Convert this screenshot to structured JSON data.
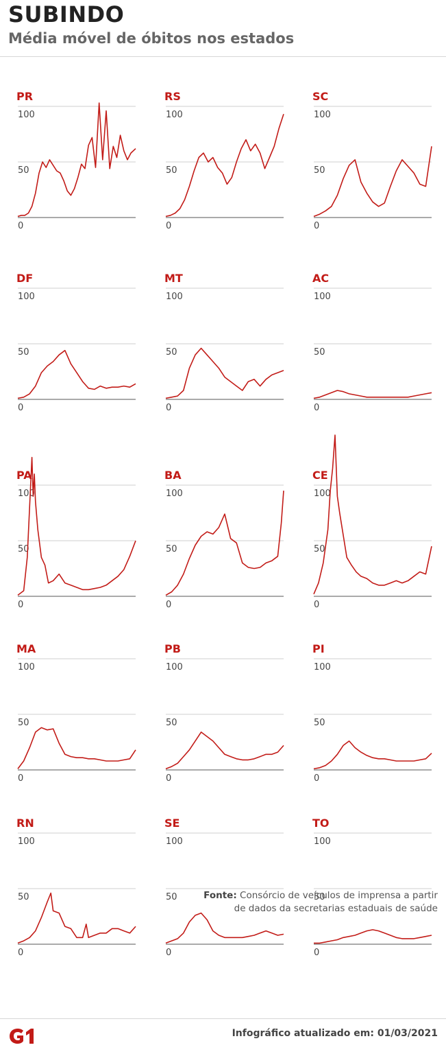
{
  "header": {
    "title": "SUBINDO",
    "subtitle": "Média móvel de óbitos nos estados"
  },
  "source": {
    "label": "Fonte:",
    "text_line1": "Consórcio de veículos de imprensa a partir",
    "text_line2": "de dados da secretarias estaduais de saúde"
  },
  "footer": {
    "updated": "Infográfico atualizado em: 01/03/2021",
    "logo": "G1"
  },
  "colors": {
    "line": "#c21b17",
    "label": "#c21b17"
  },
  "chart_data": [
    {
      "type": "line",
      "state": "PR",
      "yticks": [
        0,
        50,
        100
      ],
      "ylim": [
        0,
        100
      ],
      "x": [
        0,
        3,
        6,
        9,
        12,
        15,
        18,
        21,
        24,
        27,
        30,
        33,
        36,
        39,
        42,
        45,
        48,
        51,
        54,
        57,
        60,
        63,
        66,
        69,
        72,
        75,
        78,
        81,
        84,
        87,
        90,
        93,
        96,
        100
      ],
      "values": [
        1,
        2,
        2,
        4,
        10,
        22,
        40,
        50,
        45,
        52,
        47,
        42,
        40,
        33,
        24,
        20,
        26,
        36,
        48,
        44,
        65,
        72,
        45,
        103,
        52,
        96,
        44,
        64,
        54,
        74,
        60,
        52,
        58,
        62
      ]
    },
    {
      "type": "line",
      "state": "RS",
      "yticks": [
        0,
        50,
        100
      ],
      "ylim": [
        0,
        100
      ],
      "x": [
        0,
        4,
        8,
        12,
        16,
        20,
        24,
        28,
        32,
        36,
        40,
        44,
        48,
        52,
        56,
        60,
        64,
        68,
        72,
        76,
        80,
        84,
        88,
        92,
        96,
        100
      ],
      "values": [
        1,
        2,
        4,
        8,
        16,
        28,
        42,
        54,
        58,
        50,
        54,
        45,
        40,
        30,
        36,
        50,
        62,
        70,
        60,
        66,
        58,
        44,
        54,
        64,
        80,
        93
      ]
    },
    {
      "type": "line",
      "state": "SC",
      "yticks": [
        0,
        50,
        100
      ],
      "ylim": [
        0,
        100
      ],
      "x": [
        0,
        5,
        10,
        15,
        20,
        25,
        30,
        35,
        40,
        45,
        50,
        55,
        60,
        65,
        70,
        75,
        80,
        85,
        90,
        95,
        100
      ],
      "values": [
        1,
        3,
        6,
        10,
        20,
        35,
        47,
        52,
        32,
        22,
        14,
        10,
        13,
        28,
        42,
        52,
        46,
        40,
        30,
        28,
        64
      ]
    },
    {
      "type": "line",
      "state": "DF",
      "yticks": [
        0,
        50,
        100
      ],
      "ylim": [
        0,
        100
      ],
      "x": [
        0,
        5,
        10,
        15,
        20,
        25,
        30,
        35,
        40,
        45,
        50,
        55,
        60,
        65,
        70,
        75,
        80,
        85,
        90,
        95,
        100
      ],
      "values": [
        1,
        2,
        5,
        12,
        24,
        30,
        34,
        40,
        44,
        32,
        24,
        16,
        10,
        9,
        12,
        10,
        11,
        11,
        12,
        11,
        14
      ]
    },
    {
      "type": "line",
      "state": "MT",
      "yticks": [
        0,
        50,
        100
      ],
      "ylim": [
        0,
        100
      ],
      "x": [
        0,
        5,
        10,
        15,
        20,
        25,
        30,
        35,
        40,
        45,
        50,
        55,
        60,
        65,
        70,
        75,
        80,
        85,
        90,
        95,
        100
      ],
      "values": [
        1,
        2,
        3,
        8,
        28,
        40,
        46,
        40,
        34,
        28,
        20,
        16,
        12,
        8,
        16,
        18,
        12,
        18,
        22,
        24,
        26
      ]
    },
    {
      "type": "line",
      "state": "AC",
      "yticks": [
        0,
        50,
        100
      ],
      "ylim": [
        0,
        100
      ],
      "x": [
        0,
        5,
        10,
        15,
        20,
        25,
        30,
        35,
        40,
        45,
        50,
        55,
        60,
        65,
        70,
        75,
        80,
        85,
        90,
        95,
        100
      ],
      "values": [
        1,
        2,
        4,
        6,
        8,
        7,
        5,
        4,
        3,
        2,
        2,
        2,
        2,
        2,
        2,
        2,
        2,
        3,
        4,
        5,
        6
      ]
    },
    {
      "type": "line",
      "state": "PA",
      "yticks": [
        0,
        50,
        100
      ],
      "ylim": [
        0,
        100
      ],
      "x": [
        0,
        5,
        8,
        10,
        12,
        13,
        14,
        15,
        17,
        20,
        23,
        26,
        30,
        35,
        40,
        45,
        50,
        55,
        60,
        65,
        70,
        75,
        80,
        85,
        90,
        95,
        100
      ],
      "values": [
        1,
        5,
        35,
        80,
        125,
        90,
        110,
        85,
        60,
        35,
        28,
        12,
        14,
        20,
        12,
        10,
        8,
        6,
        6,
        7,
        8,
        10,
        14,
        18,
        24,
        36,
        50
      ]
    },
    {
      "type": "line",
      "state": "BA",
      "yticks": [
        0,
        50,
        100
      ],
      "ylim": [
        0,
        100
      ],
      "x": [
        0,
        5,
        10,
        15,
        20,
        25,
        30,
        35,
        40,
        45,
        50,
        55,
        60,
        65,
        70,
        75,
        80,
        85,
        90,
        95,
        98,
        100
      ],
      "values": [
        1,
        4,
        10,
        20,
        34,
        46,
        54,
        58,
        56,
        62,
        74,
        52,
        48,
        30,
        26,
        25,
        26,
        30,
        32,
        36,
        66,
        95
      ]
    },
    {
      "type": "line",
      "state": "CE",
      "yticks": [
        0,
        50,
        100
      ],
      "ylim": [
        0,
        100
      ],
      "x": [
        0,
        4,
        8,
        12,
        14,
        16,
        18,
        20,
        22,
        25,
        28,
        32,
        36,
        40,
        45,
        50,
        55,
        60,
        65,
        70,
        75,
        80,
        85,
        90,
        95,
        100
      ],
      "values": [
        2,
        12,
        30,
        60,
        95,
        115,
        145,
        90,
        75,
        55,
        35,
        28,
        22,
        18,
        16,
        12,
        10,
        10,
        12,
        14,
        12,
        14,
        18,
        22,
        20,
        45
      ]
    },
    {
      "type": "line",
      "state": "MA",
      "yticks": [
        0,
        50,
        100
      ],
      "ylim": [
        0,
        100
      ],
      "x": [
        0,
        5,
        10,
        15,
        20,
        25,
        30,
        35,
        40,
        45,
        50,
        55,
        60,
        65,
        70,
        75,
        80,
        85,
        90,
        95,
        100
      ],
      "values": [
        1,
        8,
        20,
        34,
        38,
        36,
        37,
        24,
        14,
        12,
        11,
        11,
        10,
        10,
        9,
        8,
        8,
        8,
        9,
        10,
        18
      ]
    },
    {
      "type": "line",
      "state": "PB",
      "yticks": [
        0,
        50,
        100
      ],
      "ylim": [
        0,
        100
      ],
      "x": [
        0,
        5,
        10,
        15,
        20,
        25,
        30,
        35,
        40,
        45,
        50,
        55,
        60,
        65,
        70,
        75,
        80,
        85,
        90,
        95,
        100
      ],
      "values": [
        1,
        3,
        6,
        12,
        18,
        26,
        34,
        30,
        26,
        20,
        14,
        12,
        10,
        9,
        9,
        10,
        12,
        14,
        14,
        16,
        22
      ]
    },
    {
      "type": "line",
      "state": "PI",
      "yticks": [
        0,
        50,
        100
      ],
      "ylim": [
        0,
        100
      ],
      "x": [
        0,
        5,
        10,
        15,
        20,
        25,
        30,
        35,
        40,
        45,
        50,
        55,
        60,
        65,
        70,
        75,
        80,
        85,
        90,
        95,
        100
      ],
      "values": [
        1,
        2,
        4,
        8,
        14,
        22,
        26,
        20,
        16,
        13,
        11,
        10,
        10,
        9,
        8,
        8,
        8,
        8,
        9,
        10,
        15
      ]
    },
    {
      "type": "line",
      "state": "RN",
      "yticks": [
        0,
        50,
        100
      ],
      "ylim": [
        0,
        100
      ],
      "x": [
        0,
        5,
        10,
        15,
        20,
        25,
        28,
        30,
        35,
        40,
        45,
        50,
        55,
        58,
        60,
        65,
        70,
        75,
        80,
        85,
        90,
        95,
        100
      ],
      "values": [
        1,
        3,
        6,
        12,
        24,
        38,
        46,
        30,
        28,
        16,
        14,
        6,
        6,
        18,
        6,
        8,
        10,
        10,
        14,
        14,
        12,
        10,
        16
      ]
    },
    {
      "type": "line",
      "state": "SE",
      "yticks": [
        0,
        50,
        100
      ],
      "ylim": [
        0,
        100
      ],
      "x": [
        0,
        5,
        10,
        15,
        20,
        25,
        30,
        35,
        40,
        45,
        50,
        55,
        60,
        65,
        70,
        75,
        80,
        85,
        90,
        95,
        100
      ],
      "values": [
        1,
        3,
        5,
        10,
        20,
        26,
        28,
        22,
        12,
        8,
        6,
        6,
        6,
        6,
        7,
        8,
        10,
        12,
        10,
        8,
        9
      ]
    },
    {
      "type": "line",
      "state": "TO",
      "yticks": [
        0,
        50,
        100
      ],
      "ylim": [
        0,
        100
      ],
      "x": [
        0,
        5,
        10,
        15,
        20,
        25,
        30,
        35,
        40,
        45,
        50,
        55,
        60,
        65,
        70,
        75,
        80,
        85,
        90,
        95,
        100
      ],
      "values": [
        1,
        1,
        2,
        3,
        4,
        6,
        7,
        8,
        10,
        12,
        13,
        12,
        10,
        8,
        6,
        5,
        5,
        5,
        6,
        7,
        8
      ]
    }
  ]
}
